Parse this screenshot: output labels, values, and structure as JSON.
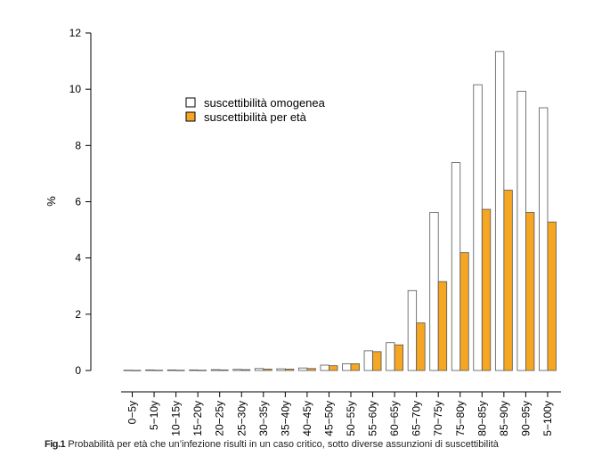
{
  "chart_data": {
    "type": "bar",
    "ylabel": "%",
    "ylim": [
      0,
      12
    ],
    "yticks": [
      0,
      2,
      4,
      6,
      8,
      10,
      12
    ],
    "categories": [
      "0-5y",
      "5-10y",
      "10-15y",
      "15-20y",
      "20-25y",
      "25-30y",
      "30-35y",
      "35-40y",
      "40-45y",
      "45-50y",
      "50-55y",
      "55-60y",
      "60-65y",
      "65-70y",
      "70-75y",
      "75-80y",
      "80-85y",
      "85-90y",
      "90-95y",
      "95-100y"
    ],
    "series": [
      {
        "name": "suscettibilità omogenea",
        "color": "#ffffff",
        "values": [
          0.01,
          0.02,
          0.02,
          0.02,
          0.03,
          0.04,
          0.07,
          0.06,
          0.09,
          0.19,
          0.24,
          0.7,
          0.99,
          2.84,
          5.62,
          7.39,
          10.16,
          11.34,
          9.93,
          9.34
        ]
      },
      {
        "name": "suscettibilità per età",
        "color": "#f5a623",
        "values": [
          0.005,
          0.01,
          0.01,
          0.01,
          0.02,
          0.03,
          0.05,
          0.05,
          0.07,
          0.17,
          0.24,
          0.67,
          0.91,
          1.69,
          3.16,
          4.19,
          5.73,
          6.41,
          5.62,
          5.28
        ]
      }
    ],
    "legend_position": "top-left",
    "grid": false
  },
  "caption": {
    "label": "Fig.1",
    "text": " Probabilità per età che un’infezione risulti in un caso critico, sotto diverse assunzioni di suscettibilità"
  }
}
